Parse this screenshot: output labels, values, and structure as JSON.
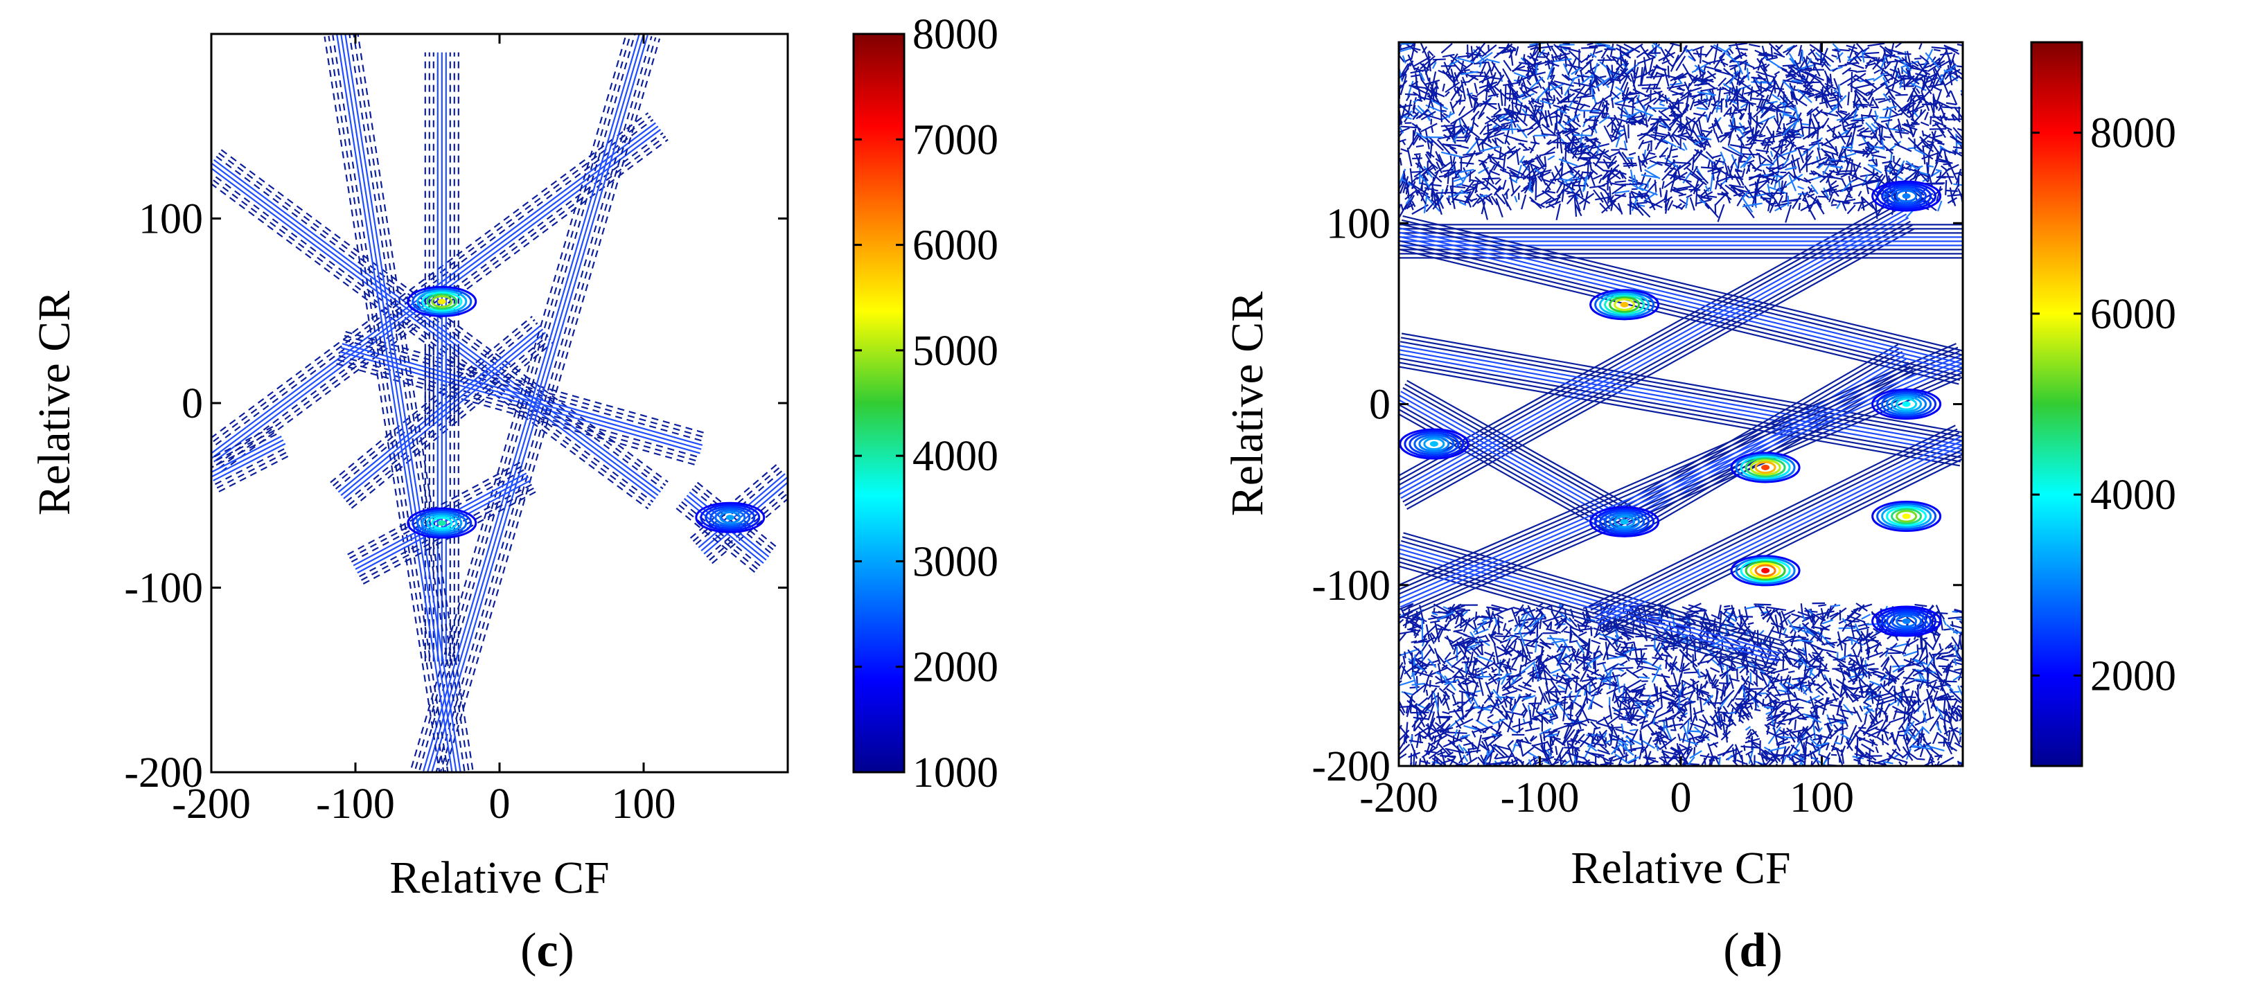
{
  "chart_data": [
    {
      "type": "heatmap",
      "panel_label": "c",
      "xlabel": "Relative CF",
      "ylabel": "Relative CR",
      "xlim": [
        -200,
        200
      ],
      "ylim": [
        -200,
        200
      ],
      "xticks": [
        -200,
        -100,
        0,
        100
      ],
      "yticks": [
        -200,
        -100,
        0,
        100
      ],
      "colorbar": {
        "min": 1000,
        "max": 8000,
        "ticks": [
          1000,
          2000,
          3000,
          4000,
          5000,
          6000,
          7000,
          8000
        ],
        "colormap": "jet"
      },
      "peaks": [
        {
          "x": -40,
          "y": 55,
          "value": 5500
        },
        {
          "x": -40,
          "y": -65,
          "value": 4000
        },
        {
          "x": 160,
          "y": -62,
          "value": 3000
        }
      ],
      "ridges": [
        {
          "from": [
            -200,
            130
          ],
          "to": [
            110,
            -50
          ]
        },
        {
          "from": [
            -200,
            -30
          ],
          "to": [
            110,
            150
          ]
        },
        {
          "from": [
            -110,
            30
          ],
          "to": [
            140,
            -25
          ]
        },
        {
          "from": [
            -110,
            -50
          ],
          "to": [
            30,
            40
          ]
        },
        {
          "from": [
            -40,
            -10
          ],
          "to": [
            -40,
            190
          ]
        },
        {
          "from": [
            -40,
            -140
          ],
          "to": [
            -40,
            30
          ]
        },
        {
          "from": [
            -50,
            -200
          ],
          "to": [
            100,
            200
          ]
        },
        {
          "from": [
            -30,
            -200
          ],
          "to": [
            -110,
            200
          ]
        },
        {
          "from": [
            -200,
            -40
          ],
          "to": [
            -150,
            -20
          ]
        },
        {
          "from": [
            -100,
            -90
          ],
          "to": [
            20,
            -40
          ]
        },
        {
          "from": [
            140,
            -80
          ],
          "to": [
            200,
            -40
          ]
        },
        {
          "from": [
            130,
            -50
          ],
          "to": [
            185,
            -85
          ]
        }
      ]
    },
    {
      "type": "heatmap",
      "panel_label": "d",
      "xlabel": "Relative CF",
      "ylabel": "Relative CR",
      "xlim": [
        -200,
        200
      ],
      "ylim": [
        -200,
        200
      ],
      "xticks": [
        -200,
        -100,
        0,
        100
      ],
      "yticks": [
        -200,
        -100,
        0,
        100
      ],
      "colorbar": {
        "min": 1000,
        "max": 9000,
        "ticks": [
          2000,
          4000,
          6000,
          8000
        ],
        "colormap": "jet"
      },
      "peaks": [
        {
          "x": -40,
          "y": 55,
          "value": 6500
        },
        {
          "x": 60,
          "y": -35,
          "value": 7500
        },
        {
          "x": 60,
          "y": -92,
          "value": 8000
        },
        {
          "x": 160,
          "y": -62,
          "value": 6000
        },
        {
          "x": -40,
          "y": -65,
          "value": 3500
        },
        {
          "x": 160,
          "y": 0,
          "value": 4000
        },
        {
          "x": -175,
          "y": -22,
          "value": 3500
        },
        {
          "x": 160,
          "y": 115,
          "value": 3000
        },
        {
          "x": 160,
          "y": -120,
          "value": 3000
        }
      ],
      "ridges": [
        {
          "from": [
            -200,
            -50
          ],
          "to": [
            160,
            105
          ]
        },
        {
          "from": [
            -200,
            30
          ],
          "to": [
            200,
            -25
          ]
        },
        {
          "from": [
            -200,
            5
          ],
          "to": [
            -40,
            -65
          ]
        },
        {
          "from": [
            -40,
            -65
          ],
          "to": [
            160,
            25
          ]
        },
        {
          "from": [
            -200,
            -80
          ],
          "to": [
            70,
            -140
          ]
        },
        {
          "from": [
            -200,
            -110
          ],
          "to": [
            200,
            25
          ]
        },
        {
          "from": [
            -60,
            -120
          ],
          "to": [
            200,
            -20
          ]
        },
        {
          "from": [
            -200,
            90
          ],
          "to": [
            200,
            90
          ]
        },
        {
          "from": [
            -200,
            95
          ],
          "to": [
            200,
            20
          ]
        }
      ]
    }
  ]
}
